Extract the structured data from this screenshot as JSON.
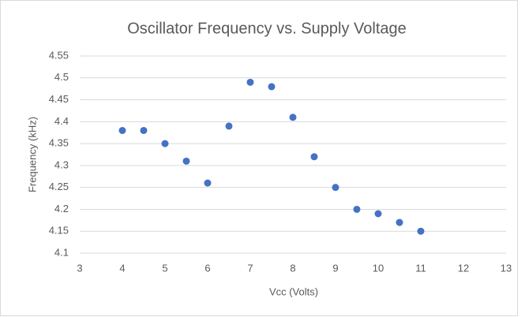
{
  "chart_data": {
    "type": "scatter",
    "title": "Oscillator Frequency vs. Supply Voltage",
    "x_label": "Vcc (Volts)",
    "y_label": "Frequency (kHz)",
    "series": [
      {
        "name": "Frequency",
        "color": "#4472c4",
        "x": [
          4,
          4.5,
          5,
          5.5,
          6,
          6.5,
          7,
          7.5,
          8,
          8.5,
          9,
          9.5,
          10,
          10.5,
          11
        ],
        "values": [
          4.38,
          4.38,
          4.35,
          4.31,
          4.26,
          4.39,
          4.49,
          4.48,
          4.41,
          4.32,
          4.25,
          4.2,
          4.19,
          4.17,
          4.15
        ]
      }
    ],
    "xlim": [
      3,
      13
    ],
    "xticks": [
      3,
      4,
      5,
      6,
      7,
      8,
      9,
      10,
      11,
      12,
      13
    ],
    "ylim": [
      4.1,
      4.55
    ],
    "yticks": [
      4.1,
      4.15,
      4.2,
      4.25,
      4.3,
      4.35,
      4.4,
      4.45,
      4.5,
      4.55
    ],
    "grid": true
  }
}
